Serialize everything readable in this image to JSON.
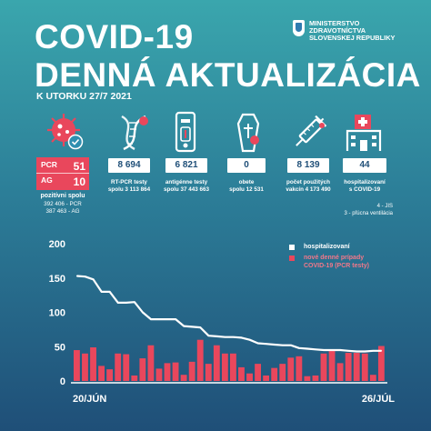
{
  "header": {
    "title_line1": "COVID-19",
    "title_line2": "DENNÁ AKTUALIZÁCIA",
    "subtitle": "K UTORKU 27/7 2021",
    "ministry_lines": [
      "MINISTERSTVO",
      "ZDRAVOTNÍCTVA",
      "SLOVENSKEJ REPUBLIKY"
    ]
  },
  "stats": {
    "positive": {
      "pcr_label": "PCR",
      "pcr_value": "51",
      "ag_label": "AG",
      "ag_value": "10",
      "caption": "pozitívni spolu",
      "detail1": "392 406 - PCR",
      "detail2": "387 463 - AG"
    },
    "rtpcr": {
      "value": "8 694",
      "caption1": "RT-PCR testy",
      "caption2": "spolu 3 113 864"
    },
    "antigen": {
      "value": "6 821",
      "caption1": "antigénne testy",
      "caption2": "spolu 37 443 663"
    },
    "deaths": {
      "value": "0",
      "caption1": "obete",
      "caption2": "spolu 12 531"
    },
    "vaccines": {
      "value": "8 139",
      "caption1": "počet použitých",
      "caption2": "vakcín 4 173 490"
    },
    "hospital": {
      "value": "44",
      "caption1": "hospitalizovaní",
      "caption2": "s COVID-19",
      "note1": "4 - JIS",
      "note2": "3 - pľúcna ventilácia"
    }
  },
  "colors": {
    "accent_red": "#e9475c",
    "white": "#ffffff",
    "bg_top": "#3aa6ad",
    "bg_bottom": "#1f4f78"
  },
  "chart_data": {
    "type": "bar+line",
    "x": [
      "20/6",
      "21/6",
      "22/6",
      "23/6",
      "24/6",
      "25/6",
      "26/6",
      "27/6",
      "28/6",
      "29/6",
      "30/6",
      "1/7",
      "2/7",
      "3/7",
      "4/7",
      "5/7",
      "6/7",
      "7/7",
      "8/7",
      "9/7",
      "10/7",
      "11/7",
      "12/7",
      "13/7",
      "14/7",
      "15/7",
      "16/7",
      "17/7",
      "18/7",
      "19/7",
      "20/7",
      "21/7",
      "22/7",
      "23/7",
      "24/7",
      "25/7",
      "26/7",
      "27/7"
    ],
    "x_tick_labels": [
      "20/JÚN",
      "26/JÚL"
    ],
    "yticks": [
      0,
      50,
      100,
      150,
      200
    ],
    "ylim": [
      0,
      200
    ],
    "series": [
      {
        "name": "hospitalizovaní",
        "kind": "line",
        "color": "#ffffff",
        "values": [
          153,
          152,
          148,
          130,
          130,
          114,
          114,
          115,
          100,
          90,
          90,
          90,
          90,
          80,
          79,
          78,
          66,
          65,
          64,
          64,
          63,
          60,
          55,
          54,
          53,
          52,
          52,
          48,
          47,
          46,
          45,
          45,
          45,
          44,
          43,
          43,
          44,
          44
        ]
      },
      {
        "name": "nové denné prípady COVID-19 (PCR testy)",
        "kind": "bar",
        "color": "#e9475c",
        "values": [
          45,
          40,
          49,
          22,
          17,
          40,
          39,
          8,
          33,
          52,
          18,
          26,
          27,
          9,
          28,
          60,
          25,
          52,
          40,
          40,
          20,
          11,
          25,
          8,
          19,
          25,
          34,
          36,
          7,
          8,
          40,
          45,
          26,
          41,
          41,
          40,
          9,
          51
        ]
      }
    ]
  }
}
